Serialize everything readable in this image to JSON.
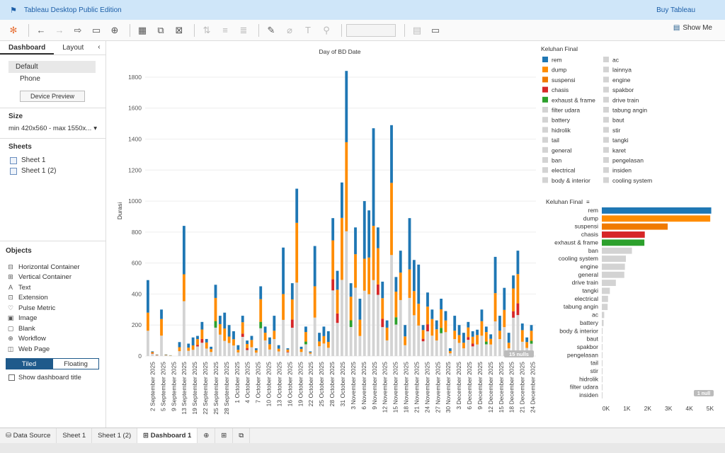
{
  "titlebar": {
    "app_title": "Tableau Desktop Public Edition",
    "buy_label": "Buy Tableau"
  },
  "toolbar": {
    "show_me_label": "Show Me"
  },
  "sidebar": {
    "tabs": [
      {
        "label": "Dashboard"
      },
      {
        "label": "Layout"
      }
    ],
    "devices": [
      {
        "label": "Default"
      },
      {
        "label": "Phone"
      }
    ],
    "device_preview_label": "Device Preview",
    "size_header": "Size",
    "size_value": "min 420x560 - max 1550x...",
    "sheets_header": "Sheets",
    "sheets": [
      {
        "label": "Sheet 1"
      },
      {
        "label": "Sheet 1 (2)"
      }
    ],
    "objects_header": "Objects",
    "objects": [
      {
        "label": "Horizontal Container",
        "icon": "horizontal-container-icon"
      },
      {
        "label": "Vertical Container",
        "icon": "vertical-container-icon"
      },
      {
        "label": "Text",
        "icon": "text-icon"
      },
      {
        "label": "Extension",
        "icon": "extension-icon"
      },
      {
        "label": "Pulse Metric",
        "icon": "pulse-metric-icon"
      },
      {
        "label": "Image",
        "icon": "image-icon"
      },
      {
        "label": "Blank",
        "icon": "blank-icon"
      },
      {
        "label": "Workflow",
        "icon": "workflow-icon"
      },
      {
        "label": "Web Page",
        "icon": "web-page-icon"
      }
    ],
    "tiled_label": "Tiled",
    "floating_label": "Floating",
    "show_title_label": "Show dashboard title"
  },
  "bottom_tabs": [
    {
      "label": "Data Source"
    },
    {
      "label": "Sheet 1"
    },
    {
      "label": "Sheet 1 (2)"
    },
    {
      "label": "Dashboard 1"
    }
  ],
  "colors": {
    "rem": "#1f77b4",
    "dump": "#ff8c00",
    "suspensi": "#f07a00",
    "chasis": "#d62728",
    "exhaust": "#2ca02c",
    "other": "#d3d3d3",
    "accent": "#1f5a8b"
  },
  "chart_data": [
    {
      "type": "bar",
      "title": "Day of BD Date",
      "ylabel": "Durasi",
      "xlabel": "",
      "ylim": [
        0,
        1850
      ],
      "yticks": [
        0,
        200,
        400,
        600,
        800,
        1000,
        1200,
        1400,
        1600,
        1800
      ],
      "tick_labels": [
        "2 September 2025",
        "5 September 2025",
        "9 September 2025",
        "13 September 2025",
        "19 September 2025",
        "22 September 2025",
        "25 September 2025",
        "28 September 2025",
        "1 October 2025",
        "4 October 2025",
        "7 October 2025",
        "10 October 2025",
        "13 October 2025",
        "16 October 2025",
        "19 October 2025",
        "22 October 2025",
        "25 October 2025",
        "28 October 2025",
        "31 October 2025",
        "3 November 2025",
        "6 November 2025",
        "9 November 2025",
        "12 November 2025",
        "15 November 2025",
        "18 November 2025",
        "21 November 2025",
        "24 November 2025",
        "27 November 2025",
        "30 November 2025",
        "3 December 2025",
        "6 December 2025",
        "9 December 2025",
        "12 December 2025",
        "15 December 2025",
        "18 December 2025",
        "21 December 2025",
        "24 December 2025"
      ],
      "totals": [
        490,
        30,
        10,
        300,
        10,
        5,
        0,
        90,
        840,
        80,
        120,
        130,
        220,
        110,
        60,
        460,
        260,
        280,
        200,
        160,
        70,
        260,
        100,
        130,
        50,
        450,
        190,
        120,
        260,
        70,
        700,
        50,
        470,
        1080,
        60,
        190,
        30,
        710,
        150,
        190,
        160,
        890,
        550,
        1120,
        1840,
        470,
        830,
        370,
        1000,
        940,
        1470,
        830,
        480,
        230,
        1490,
        510,
        680,
        200,
        890,
        620,
        590,
        200,
        410,
        300,
        230,
        370,
        290,
        50,
        260,
        200,
        150,
        220,
        160,
        170,
        300,
        190,
        140,
        640,
        260,
        440,
        150,
        520,
        680,
        210,
        120,
        200
      ],
      "series_legend": [
        {
          "name": "rem"
        },
        {
          "name": "dump"
        },
        {
          "name": "suspensi"
        },
        {
          "name": "chasis"
        },
        {
          "name": "exhaust & frame"
        },
        {
          "name": "filter udara"
        },
        {
          "name": "battery"
        },
        {
          "name": "hidrolik"
        },
        {
          "name": "tail"
        },
        {
          "name": "general"
        },
        {
          "name": "ban"
        },
        {
          "name": "electrical"
        },
        {
          "name": "body & interior"
        },
        {
          "name": "ac"
        },
        {
          "name": "lainnya"
        },
        {
          "name": "engine"
        },
        {
          "name": "spakbor"
        },
        {
          "name": "drive train"
        },
        {
          "name": "tabung angin"
        },
        {
          "name": "baut"
        },
        {
          "name": "stir"
        },
        {
          "name": "tangki"
        },
        {
          "name": "karet"
        },
        {
          "name": "pengelasan"
        },
        {
          "name": "insiden"
        },
        {
          "name": "cooling system"
        }
      ],
      "legend_title": "Keluhan Final",
      "nulls_label": "15 nulls"
    },
    {
      "type": "bar",
      "orientation": "horizontal",
      "title": "Keluhan Final",
      "categories": [
        "rem",
        "dump",
        "suspensi",
        "chasis",
        "exhaust & frame",
        "ban",
        "cooling system",
        "engine",
        "general",
        "drive train",
        "tangki",
        "electrical",
        "tabung angin",
        "ac",
        "battery",
        "body & interior",
        "baut",
        "spakbor",
        "pengelasan",
        "tail",
        "stir",
        "hidrolik",
        "filter udara",
        "insiden"
      ],
      "values": [
        5450,
        5400,
        3280,
        2140,
        2120,
        1500,
        1200,
        1150,
        1120,
        700,
        400,
        310,
        290,
        120,
        90,
        40,
        30,
        20,
        15,
        10,
        8,
        5,
        3,
        2
      ],
      "xticks": [
        "0K",
        "1K",
        "2K",
        "3K",
        "4K",
        "5K"
      ],
      "xlim": [
        0,
        5500
      ],
      "nulls_label": "1 null"
    }
  ]
}
